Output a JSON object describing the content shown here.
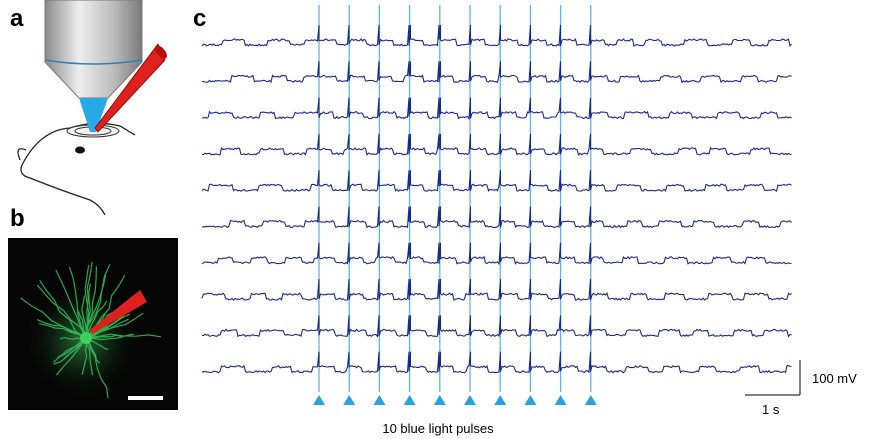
{
  "panel_labels": [
    "a",
    "b",
    "c"
  ],
  "scale_bar": {
    "voltage": "100 mV",
    "time": "1 s"
  },
  "stimulus_label": "10 blue light pulses"
}
